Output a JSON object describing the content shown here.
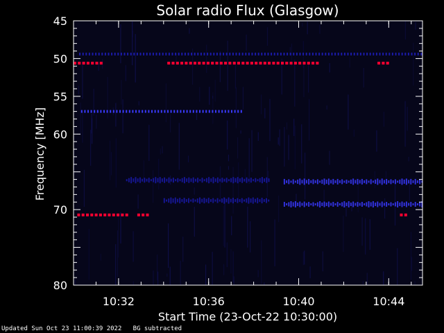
{
  "chart_data": {
    "type": "heatmap",
    "title": "Solar radio Flux (Glasgow)",
    "xlabel": "Start Time (23-Oct-22 10:30:00)",
    "ylabel": "Frequency [MHz]",
    "x_start": "10:30:00",
    "x_end": "10:45:30",
    "ylim": [
      45,
      80
    ],
    "y_inverted": true,
    "yticks": [
      45,
      50,
      55,
      60,
      65,
      70,
      75,
      80
    ],
    "ytick_labels": [
      "45",
      "50",
      "55",
      "60",
      "",
      "70",
      "",
      "80"
    ],
    "xticks": [
      "10:32",
      "10:36",
      "10:40",
      "10:44"
    ],
    "colors": {
      "background": "#000000",
      "frame": "#ffffff",
      "low": "#0a0a26",
      "medium": "#1a1aa8",
      "high": "#3a3aff",
      "peak": "#ff0030"
    },
    "features": [
      {
        "kind": "steady_emission",
        "freq_mhz": 49.4,
        "t_start": "10:30:15",
        "t_end": "10:45:30",
        "intensity": "medium"
      },
      {
        "kind": "steady_emission",
        "freq_mhz": 50.6,
        "t_start": "10:30:00",
        "t_end": "10:31:20",
        "intensity": "peak"
      },
      {
        "kind": "steady_emission",
        "freq_mhz": 50.6,
        "t_start": "10:34:10",
        "t_end": "10:40:50",
        "intensity": "peak"
      },
      {
        "kind": "steady_emission",
        "freq_mhz": 50.6,
        "t_start": "10:43:30",
        "t_end": "10:44:00",
        "intensity": "peak"
      },
      {
        "kind": "steady_emission",
        "freq_mhz": 57.0,
        "t_start": "10:30:20",
        "t_end": "10:37:30",
        "intensity": "high"
      },
      {
        "kind": "band",
        "freq_mhz": 66.3,
        "t_start": "10:39:20",
        "t_end": "10:45:30",
        "intensity": "high"
      },
      {
        "kind": "band",
        "freq_mhz": 69.3,
        "t_start": "10:39:20",
        "t_end": "10:45:30",
        "intensity": "high"
      },
      {
        "kind": "band",
        "freq_mhz": 66.1,
        "t_start": "10:32:20",
        "t_end": "10:38:40",
        "intensity": "medium"
      },
      {
        "kind": "band",
        "freq_mhz": 68.8,
        "t_start": "10:34:00",
        "t_end": "10:38:40",
        "intensity": "medium"
      },
      {
        "kind": "steady_emission",
        "freq_mhz": 70.7,
        "t_start": "10:30:10",
        "t_end": "10:32:20",
        "intensity": "peak"
      },
      {
        "kind": "steady_emission",
        "freq_mhz": 70.7,
        "t_start": "10:32:50",
        "t_end": "10:33:20",
        "intensity": "peak"
      },
      {
        "kind": "steady_emission",
        "freq_mhz": 70.7,
        "t_start": "10:44:30",
        "t_end": "10:44:50",
        "intensity": "peak"
      }
    ]
  },
  "footer": {
    "updated": "Updated Sun Oct 23 11:00:39 2022",
    "note": "BG subtracted"
  }
}
